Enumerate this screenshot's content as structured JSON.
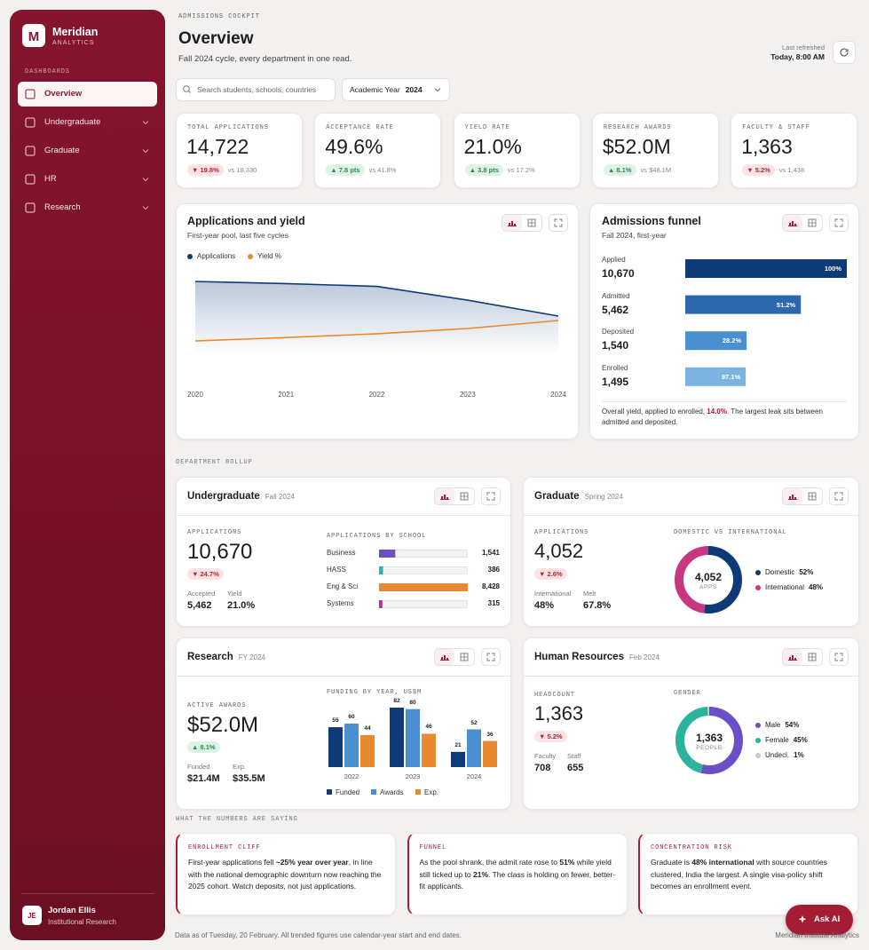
{
  "sidebar": {
    "logo": "M",
    "brand": "Meridian",
    "brand_sub": "ANALYTICS",
    "section": "DASHBOARDS",
    "nav": [
      "Overview",
      "Undergraduate",
      "Graduate",
      "HR",
      "Research"
    ],
    "user": {
      "initials": "JE",
      "name": "Jordan Ellis",
      "role": "Institutional Research"
    }
  },
  "header": {
    "eyebrow": "ADMISSIONS COCKPIT",
    "title": "Overview",
    "subtitle": "Fall 2024 cycle, every department in one read.",
    "refreshed_label": "Last refreshed",
    "refreshed_value": "Today, 8:00 AM"
  },
  "filters": {
    "search_placeholder": "Search students, schools, countries",
    "year_label": "Academic Year",
    "year_value": "2024"
  },
  "kpis": [
    {
      "label": "TOTAL APPLICATIONS",
      "value": "14,722",
      "delta": "▼ 19.8%",
      "compare": "vs 18,330"
    },
    {
      "label": "ACCEPTANCE RATE",
      "value": "49.6%",
      "delta": "▲ 7.8 pts",
      "compare": "vs 41.8%"
    },
    {
      "label": "YIELD RATE",
      "value": "21.0%",
      "delta": "▲ 3.8 pts",
      "compare": "vs 17.2%"
    },
    {
      "label": "RESEARCH AWARDS",
      "value": "$52.0M",
      "delta": "▲ 8.1%",
      "compare": "vs $48.1M"
    },
    {
      "label": "FACULTY & STAFF",
      "value": "1,363",
      "delta": "▼ 5.2%",
      "compare": "vs 1,438"
    }
  ],
  "applications_chart": {
    "type": "line",
    "title": "Applications and yield",
    "subtitle": "First-year pool, last five cycles",
    "x": [
      2020,
      2021,
      2022,
      2023,
      2024
    ],
    "series": [
      {
        "name": "Applications",
        "color": "#0d3b78",
        "values": [
          22565,
          22080,
          21450,
          18330,
          14722
        ]
      },
      {
        "name": "Yield %",
        "color": "#e8892f",
        "values": [
          11.3,
          12.9,
          14.7,
          17.2,
          21.0
        ]
      }
    ]
  },
  "funnel": {
    "type": "funnel",
    "title": "Admissions funnel",
    "subtitle": "Fall 2024, first-year",
    "stages": [
      {
        "name": "Applied",
        "count": 10670,
        "count_label": "10,670",
        "pct_label": "100%",
        "color": "#0d3b78"
      },
      {
        "name": "Admitted",
        "count": 5462,
        "count_label": "5,462",
        "pct_label": "51.2%",
        "color": "#2d68ae"
      },
      {
        "name": "Deposited",
        "count": 1540,
        "count_label": "1,540",
        "pct_label": "28.2%",
        "color": "#4a90d0"
      },
      {
        "name": "Enrolled",
        "count": 1495,
        "count_label": "1,495",
        "pct_label": "97.1%",
        "color": "#7cb3e1"
      }
    ],
    "note": [
      "Overall yield, applied to enrolled, ",
      "14.0%",
      ". The largest leak sits between admitted and deposited."
    ]
  },
  "rollup_label": "DEPARTMENT ROLLUP",
  "departments": {
    "undergraduate": {
      "title": "Undergraduate",
      "period": "Fall 2024",
      "metric_label": "APPLICATIONS",
      "metric": "10,670",
      "delta": "▼ 24.7%",
      "stats": [
        {
          "label": "Accepted",
          "value": "5,462"
        },
        {
          "label": "Yield",
          "value": "21.0%"
        }
      ],
      "chart": {
        "type": "hbar",
        "title": "APPLICATIONS BY SCHOOL",
        "categories": [
          "Business",
          "HASS",
          "Eng & Sci",
          "Systems"
        ],
        "values": [
          1541,
          386,
          8428,
          315
        ],
        "value_labels": [
          "1,541",
          "386",
          "8,428",
          "315"
        ],
        "colors": [
          "#6a4fc8",
          "#2bb3b0",
          "#e8892f",
          "#b0338a"
        ]
      }
    },
    "graduate": {
      "title": "Graduate",
      "period": "Spring 2024",
      "metric_label": "APPLICATIONS",
      "metric": "4,052",
      "delta": "▼ 2.6%",
      "stats": [
        {
          "label": "International",
          "value": "48%"
        },
        {
          "label": "Melt",
          "value": "67.8%"
        }
      ],
      "chart": {
        "type": "donut",
        "title": "DOMESTIC VS INTERNATIONAL",
        "center": "4,052",
        "center_label": "APPS",
        "categories": [
          "Domestic",
          "International"
        ],
        "values": [
          52,
          48
        ],
        "value_labels": [
          "52%",
          "48%"
        ],
        "colors": [
          "#0d3b78",
          "#c8377f"
        ]
      }
    },
    "research": {
      "title": "Research",
      "period": "FY 2024",
      "metric_label": "ACTIVE AWARDS",
      "metric": "$52.0M",
      "delta": "▲ 8.1%",
      "stats": [
        {
          "label": "Funded",
          "value": "$21.4M"
        },
        {
          "label": "Exp.",
          "value": "$35.5M"
        }
      ],
      "chart": {
        "type": "grouped-bar",
        "title": "FUNDING BY YEAR, US$M",
        "categories": [
          "2022",
          "2023",
          "2024"
        ],
        "series": [
          {
            "name": "Funded",
            "color": "#0d3b78",
            "values": [
              55,
              82,
              21
            ]
          },
          {
            "name": "Awards",
            "color": "#4a90d0",
            "values": [
              60,
              80,
              52
            ]
          },
          {
            "name": "Exp.",
            "color": "#e8892f",
            "values": [
              44,
              46,
              36
            ]
          }
        ]
      }
    },
    "hr": {
      "title": "Human Resources",
      "period": "Feb 2024",
      "metric_label": "HEADCOUNT",
      "metric": "1,363",
      "delta": "▼ 5.2%",
      "stats": [
        {
          "label": "Faculty",
          "value": "708"
        },
        {
          "label": "Staff",
          "value": "655"
        }
      ],
      "chart": {
        "type": "donut",
        "title": "GENDER",
        "center": "1,363",
        "center_label": "PEOPLE",
        "categories": [
          "Male",
          "Female",
          "Undecl."
        ],
        "values": [
          54,
          45,
          1
        ],
        "value_labels": [
          "54%",
          "45%",
          "1%"
        ],
        "colors": [
          "#6a4fc8",
          "#2bb3a0",
          "#c9c9c9"
        ]
      }
    }
  },
  "insights_label": "WHAT THE NUMBERS ARE SAYING",
  "insights": [
    {
      "tag": "ENROLLMENT CLIFF",
      "body": [
        "First-year applications fell ",
        "~25% year over year",
        ", in line with the national demographic downturn now reaching the 2025 cohort. Watch deposits, not just applications."
      ]
    },
    {
      "tag": "FUNNEL",
      "body": [
        "As the pool shrank, the admit rate rose to ",
        "51%",
        " while yield still ticked up to ",
        "21%",
        ". The class is holding on fewer, better-fit applicants."
      ]
    },
    {
      "tag": "CONCENTRATION RISK",
      "body": [
        "Graduate is ",
        "48% international",
        " with source countries clustered, India the largest. A single visa-policy shift becomes an enrollment event."
      ]
    }
  ],
  "footer": {
    "note": "Data as of Tuesday, 20 February. All trended figures use calendar-year start and end dates.",
    "brand": "Meridian Institute Analytics"
  },
  "ask_ai": "Ask AI"
}
